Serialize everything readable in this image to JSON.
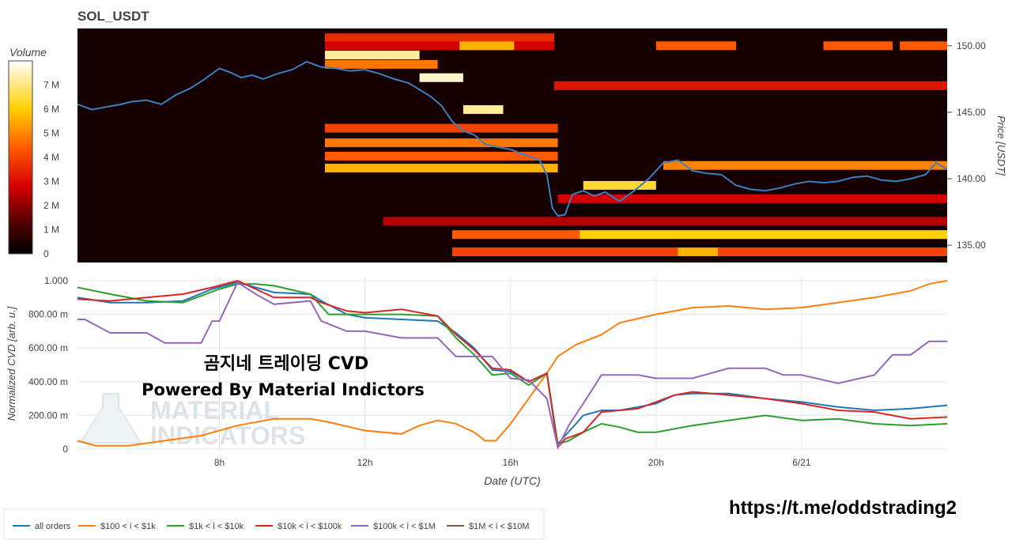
{
  "heatmap_title": "SOL_USDT",
  "colorbar": {
    "title": "Volume",
    "ticks": [
      "0",
      "1 M",
      "2 M",
      "3 M",
      "4 M",
      "5 M",
      "6 M",
      "7 M"
    ]
  },
  "price_axis": {
    "title": "Price [USDT]",
    "ticks": [
      "135.00",
      "140.00",
      "145.00",
      "150.00"
    ]
  },
  "cvd_axis": {
    "title": "Normalized CVD [arb. u.]",
    "ticks": [
      "0",
      "200.00 m",
      "400.00 m",
      "600.00 m",
      "800.00 m",
      "1.000"
    ]
  },
  "x_axis": {
    "title": "Date (UTC)",
    "ticks": [
      "8h",
      "12h",
      "16h",
      "20h",
      "6/21"
    ]
  },
  "overlay": {
    "line1": "곰지네 트레이딩 CVD",
    "line2": "Powered By Material Indictors"
  },
  "watermark": {
    "line1": "MATERIAL",
    "line2": "INDICATORS"
  },
  "link": "https://t.me/oddstrading2",
  "colors": {
    "all_orders": "#1f77b4",
    "s100_1k": "#ff7f0e",
    "s1k_10k": "#2ca02c",
    "s10k_100k": "#d62728",
    "s100k_1m": "#9467bd",
    "s1m_10m": "#8c564b",
    "heat_bg": "#170000"
  },
  "chart_data": [
    {
      "type": "heatmap",
      "title": "SOL_USDT",
      "x_ticks": [
        "8h",
        "12h",
        "16h",
        "20h",
        "6/21"
      ],
      "ylabel": "Price [USDT]",
      "ylim": [
        133.7,
        151.3
      ],
      "colorscale_label": "Volume",
      "zlim": [
        0,
        8000000
      ],
      "price_line": {
        "x_hours": [
          4.1,
          4.5,
          4.9,
          5.3,
          5.6,
          6,
          6.4,
          6.8,
          7.2,
          7.6,
          8,
          8.3,
          8.6,
          8.9,
          9.2,
          9.6,
          10,
          10.4,
          10.8,
          11.2,
          11.6,
          12,
          12.4,
          12.8,
          13.2,
          13.5,
          13.8,
          14.1,
          14.4,
          14.7,
          15,
          15.3,
          15.6,
          16,
          16.4,
          16.8,
          17,
          17.15,
          17.3,
          17.5,
          17.7,
          18,
          18.3,
          18.6,
          19,
          19.4,
          19.8,
          20.2,
          20.6,
          21,
          21.4,
          21.8,
          22.2,
          22.6,
          23,
          23.4,
          23.8,
          24.2,
          24.6,
          25,
          25.4,
          25.8,
          26.2,
          26.6,
          27,
          27.4,
          27.7,
          28
        ],
        "price": [
          145.6,
          145.2,
          145.4,
          145.6,
          145.8,
          145.9,
          145.6,
          146.3,
          146.8,
          147.5,
          148.3,
          148.0,
          147.6,
          147.8,
          147.5,
          147.9,
          148.2,
          148.8,
          148.4,
          148.3,
          148.1,
          148.2,
          147.9,
          147.5,
          147.2,
          146.7,
          146.2,
          145.5,
          144.3,
          143.6,
          143.3,
          142.6,
          142.4,
          142.2,
          141.8,
          141.4,
          140.3,
          137.8,
          137.2,
          137.3,
          138.8,
          139.1,
          138.7,
          139.0,
          138.3,
          139.1,
          140.0,
          141.2,
          141.4,
          140.6,
          140.4,
          140.3,
          139.5,
          139.2,
          139.1,
          139.3,
          139.6,
          139.8,
          139.7,
          139.8,
          140.1,
          140.2,
          139.9,
          139.8,
          140.0,
          140.3,
          141.2,
          140.7
        ]
      },
      "bands": [
        {
          "price": 150.6,
          "from_h": 10.9,
          "to_h": 17.2,
          "level": 0.45
        },
        {
          "price": 150.0,
          "from_h": 10.9,
          "to_h": 17.2,
          "level": 0.35
        },
        {
          "price": 150.0,
          "from_h": 14.6,
          "to_h": 16.1,
          "level": 0.7
        },
        {
          "price": 150.0,
          "from_h": 20.0,
          "to_h": 22.2,
          "level": 0.55
        },
        {
          "price": 150.0,
          "from_h": 24.6,
          "to_h": 26.5,
          "level": 0.55
        },
        {
          "price": 150.0,
          "from_h": 26.7,
          "to_h": 28.0,
          "level": 0.55
        },
        {
          "price": 149.3,
          "from_h": 10.9,
          "to_h": 13.5,
          "level": 0.9
        },
        {
          "price": 148.6,
          "from_h": 10.9,
          "to_h": 14.0,
          "level": 0.6
        },
        {
          "price": 147.0,
          "from_h": 17.2,
          "to_h": 28.0,
          "level": 0.4
        },
        {
          "price": 147.6,
          "from_h": 13.5,
          "to_h": 14.7,
          "level": 0.95
        },
        {
          "price": 145.2,
          "from_h": 14.7,
          "to_h": 15.8,
          "level": 0.9
        },
        {
          "price": 143.8,
          "from_h": 10.9,
          "to_h": 17.3,
          "level": 0.5
        },
        {
          "price": 142.7,
          "from_h": 10.9,
          "to_h": 17.3,
          "level": 0.6
        },
        {
          "price": 141.7,
          "from_h": 10.9,
          "to_h": 17.3,
          "level": 0.55
        },
        {
          "price": 140.8,
          "from_h": 10.9,
          "to_h": 17.3,
          "level": 0.7
        },
        {
          "price": 141.0,
          "from_h": 20.2,
          "to_h": 28.0,
          "level": 0.62
        },
        {
          "price": 139.5,
          "from_h": 18.0,
          "to_h": 20.0,
          "level": 0.8
        },
        {
          "price": 138.5,
          "from_h": 17.3,
          "to_h": 28.0,
          "level": 0.35
        },
        {
          "price": 136.8,
          "from_h": 12.5,
          "to_h": 28.0,
          "level": 0.3
        },
        {
          "price": 135.8,
          "from_h": 14.4,
          "to_h": 28.0,
          "level": 0.55
        },
        {
          "price": 135.8,
          "from_h": 17.9,
          "to_h": 28.0,
          "level": 0.75
        },
        {
          "price": 134.5,
          "from_h": 14.4,
          "to_h": 28.0,
          "level": 0.5
        },
        {
          "price": 134.5,
          "from_h": 20.6,
          "to_h": 21.7,
          "level": 0.7
        }
      ]
    },
    {
      "type": "line",
      "xlabel": "Date (UTC)",
      "ylabel": "Normalized CVD [arb. u.]",
      "ylim": [
        0,
        1
      ],
      "x_hours_range": [
        4.1,
        28.0
      ],
      "series": [
        {
          "name": "all orders",
          "x": [
            4.1,
            5,
            6,
            7,
            7.8,
            8.5,
            9.5,
            10.5,
            10.8,
            11.5,
            12,
            13,
            14,
            14.5,
            15,
            15.5,
            16,
            16.5,
            17,
            17.3,
            17.5,
            17.8,
            18,
            18.5,
            19,
            19.5,
            20,
            20.5,
            21,
            22,
            23,
            24,
            25,
            26,
            27,
            28
          ],
          "values": [
            0.9,
            0.87,
            0.87,
            0.88,
            0.95,
            0.99,
            0.93,
            0.92,
            0.88,
            0.8,
            0.78,
            0.77,
            0.76,
            0.69,
            0.6,
            0.47,
            0.46,
            0.4,
            0.45,
            0.03,
            0.08,
            0.15,
            0.2,
            0.23,
            0.23,
            0.25,
            0.27,
            0.32,
            0.33,
            0.33,
            0.3,
            0.28,
            0.25,
            0.23,
            0.24,
            0.26
          ]
        },
        {
          "name": "$100 < i < $1k",
          "x": [
            4.1,
            4.6,
            5.5,
            6.5,
            7.5,
            8.5,
            9.5,
            10.5,
            11,
            12,
            13,
            13.5,
            14,
            14.5,
            15,
            15.3,
            15.6,
            16,
            16.5,
            17,
            17.3,
            17.8,
            18.5,
            19,
            20,
            21,
            22,
            23,
            24,
            25,
            26,
            27,
            27.5,
            28
          ],
          "values": [
            0.05,
            0.02,
            0.02,
            0.05,
            0.08,
            0.14,
            0.18,
            0.18,
            0.16,
            0.11,
            0.09,
            0.14,
            0.17,
            0.15,
            0.1,
            0.05,
            0.05,
            0.15,
            0.3,
            0.45,
            0.55,
            0.62,
            0.68,
            0.75,
            0.8,
            0.84,
            0.85,
            0.83,
            0.84,
            0.87,
            0.9,
            0.94,
            0.98,
            1.0
          ]
        },
        {
          "name": "$1k < i < $10k",
          "x": [
            4.1,
            5,
            6,
            7,
            8,
            8.5,
            9,
            9.5,
            10.5,
            11,
            12,
            13,
            14,
            14.5,
            15,
            15.5,
            16,
            16.5,
            17,
            17.3,
            17.6,
            18,
            18.5,
            19,
            19.5,
            20,
            21,
            22,
            23,
            24,
            25,
            26,
            27,
            28
          ],
          "values": [
            0.96,
            0.92,
            0.88,
            0.87,
            0.95,
            0.98,
            0.98,
            0.97,
            0.92,
            0.8,
            0.8,
            0.8,
            0.79,
            0.66,
            0.56,
            0.44,
            0.45,
            0.38,
            0.45,
            0.03,
            0.05,
            0.1,
            0.15,
            0.13,
            0.1,
            0.1,
            0.14,
            0.17,
            0.2,
            0.17,
            0.18,
            0.15,
            0.14,
            0.15
          ]
        },
        {
          "name": "$10k < i < $100k",
          "x": [
            4.1,
            5,
            6,
            7,
            7.8,
            8.5,
            9.5,
            10.5,
            10.8,
            11.5,
            12,
            13,
            14,
            14.5,
            15,
            15.5,
            16,
            16.5,
            17,
            17.3,
            17.5,
            18,
            18.5,
            19,
            19.5,
            20,
            20.5,
            21,
            22,
            23,
            24,
            25,
            26,
            27,
            28
          ],
          "values": [
            0.89,
            0.88,
            0.9,
            0.92,
            0.96,
            1.0,
            0.9,
            0.9,
            0.87,
            0.82,
            0.81,
            0.83,
            0.79,
            0.68,
            0.59,
            0.48,
            0.47,
            0.4,
            0.45,
            0.01,
            0.06,
            0.1,
            0.22,
            0.23,
            0.24,
            0.28,
            0.32,
            0.34,
            0.32,
            0.3,
            0.27,
            0.23,
            0.22,
            0.18,
            0.19
          ]
        },
        {
          "name": "$100k < i < $1M",
          "x": [
            4.1,
            4.3,
            5,
            6,
            6.5,
            7.5,
            7.8,
            8,
            8.5,
            9,
            9.5,
            10.5,
            10.8,
            11.5,
            12,
            13,
            14,
            14.5,
            15,
            15.5,
            16,
            16.5,
            17,
            17.3,
            17.6,
            18,
            18.5,
            19,
            19.5,
            20,
            21,
            22,
            23,
            23.5,
            24,
            25,
            26,
            26.5,
            27,
            27.5,
            28
          ],
          "values": [
            0.77,
            0.77,
            0.69,
            0.69,
            0.63,
            0.63,
            0.76,
            0.76,
            0.99,
            0.92,
            0.86,
            0.88,
            0.76,
            0.7,
            0.7,
            0.66,
            0.66,
            0.55,
            0.55,
            0.55,
            0.42,
            0.41,
            0.3,
            0.01,
            0.14,
            0.27,
            0.44,
            0.44,
            0.44,
            0.42,
            0.42,
            0.48,
            0.48,
            0.44,
            0.44,
            0.39,
            0.44,
            0.56,
            0.56,
            0.64,
            0.64
          ]
        },
        {
          "name": "$1M < i < $10M",
          "x": [],
          "values": []
        }
      ]
    }
  ]
}
